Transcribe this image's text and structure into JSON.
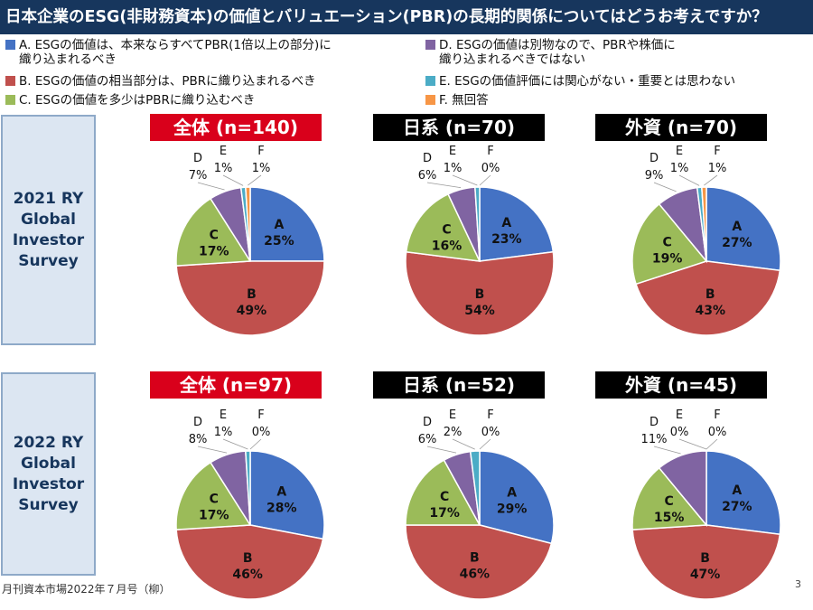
{
  "title": "日本企業のESG(非財務資本)の価値とバリュエーション(PBR)の長期的関係についてはどうお考えですか？",
  "legend": [
    {
      "key": "A",
      "line1": "A. ESGの価値は、本来ならすべてPBR(1倍以上の部分)に",
      "line2": "織り込まれるべき",
      "color": "#4472c4"
    },
    {
      "key": "B",
      "line1": "B. ESGの価値の相当部分は、PBRに織り込まれるべき",
      "line2": "",
      "color": "#c0504d"
    },
    {
      "key": "C",
      "line1": "C. ESGの価値を多少はPBRに織り込むべき",
      "line2": "",
      "color": "#9bbb59"
    },
    {
      "key": "D",
      "line1": "D. ESGの価値は別物なので、PBRや株価に",
      "line2": "織り込まれるべきではない",
      "color": "#8064a2"
    },
    {
      "key": "E",
      "line1": "E. ESGの価値評価には関心がない・重要とは思わない",
      "line2": "",
      "color": "#4bacc6"
    },
    {
      "key": "F",
      "line1": "F. 無回答",
      "line2": "",
      "color": "#f79646"
    }
  ],
  "surveys": [
    {
      "label_lines": [
        "2021 RY",
        "Global",
        "Investor",
        "Survey"
      ]
    },
    {
      "label_lines": [
        "2022 RY",
        "Global",
        "Investor",
        "Survey"
      ]
    }
  ],
  "chart_data": [
    {
      "type": "pie",
      "title": "全体 (n=140)",
      "survey": "2021 RY Global Investor Survey",
      "categories": [
        "A",
        "B",
        "C",
        "D",
        "E",
        "F"
      ],
      "values": [
        25,
        49,
        17,
        7,
        1,
        1
      ],
      "labels": [
        "25%",
        "49%",
        "17%",
        "7%",
        "1%",
        "1%"
      ]
    },
    {
      "type": "pie",
      "title": "日系 (n=70)",
      "survey": "2021 RY Global Investor Survey",
      "categories": [
        "A",
        "B",
        "C",
        "D",
        "E",
        "F"
      ],
      "values": [
        23,
        54,
        16,
        6,
        1,
        0
      ],
      "labels": [
        "23%",
        "54%",
        "16%",
        "6%",
        "1%",
        "0%"
      ]
    },
    {
      "type": "pie",
      "title": "外資 (n=70)",
      "survey": "2021 RY Global Investor Survey",
      "categories": [
        "A",
        "B",
        "C",
        "D",
        "E",
        "F"
      ],
      "values": [
        27,
        43,
        19,
        9,
        1,
        1
      ],
      "labels": [
        "27%",
        "43%",
        "19%",
        "9%",
        "1%",
        "1%"
      ]
    },
    {
      "type": "pie",
      "title": "全体 (n=97)",
      "survey": "2022 RY Global Investor Survey",
      "categories": [
        "A",
        "B",
        "C",
        "D",
        "E",
        "F"
      ],
      "values": [
        28,
        46,
        17,
        8,
        1,
        0
      ],
      "labels": [
        "28%",
        "46%",
        "17%",
        "8%",
        "1%",
        "0%"
      ]
    },
    {
      "type": "pie",
      "title": "日系 (n=52)",
      "survey": "2022 RY Global Investor Survey",
      "categories": [
        "A",
        "B",
        "C",
        "D",
        "E",
        "F"
      ],
      "values": [
        29,
        46,
        17,
        6,
        2,
        0
      ],
      "labels": [
        "29%",
        "46%",
        "17%",
        "6%",
        "2%",
        "0%"
      ]
    },
    {
      "type": "pie",
      "title": "外資 (n=45)",
      "survey": "2022 RY Global Investor Survey",
      "categories": [
        "A",
        "B",
        "C",
        "D",
        "E",
        "F"
      ],
      "values": [
        27,
        47,
        15,
        11,
        0,
        0
      ],
      "labels": [
        "27%",
        "47%",
        "15%",
        "11%",
        "0%",
        "0%"
      ]
    }
  ],
  "header_styles": [
    "red",
    "black",
    "black",
    "red",
    "black",
    "black"
  ],
  "footer": "月刊資本市場2022年７月号（柳）",
  "page_number": "3"
}
